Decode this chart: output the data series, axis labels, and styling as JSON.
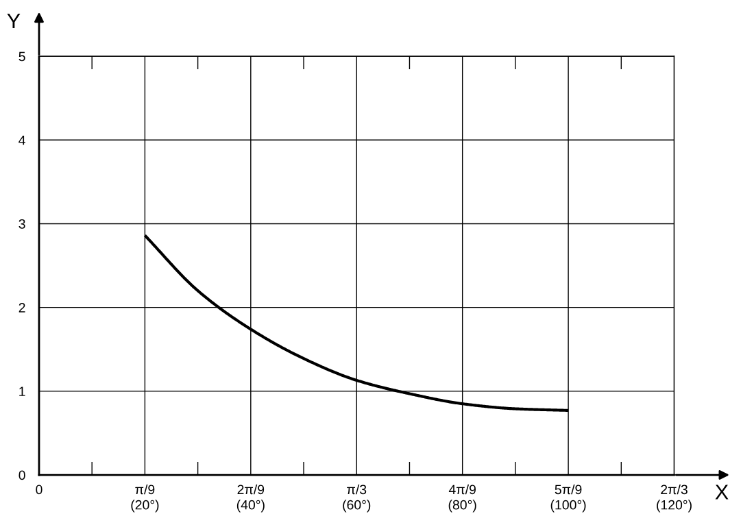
{
  "chart_data": {
    "type": "line",
    "xlabel": "X",
    "ylabel": "Y",
    "categories": [
      "0",
      null,
      "π/9\n(20°)",
      null,
      "2π/9\n(40°)",
      null,
      "π/3\n(60°)",
      null,
      "4π/9\n(80°)",
      null,
      "5π/9\n(100°)",
      null,
      "2π/3\n(120°)"
    ],
    "series": [
      {
        "color": "#000000",
        "values": [
          null,
          null,
          2.86,
          2.2,
          1.74,
          1.39,
          1.13,
          0.97,
          0.85,
          0.79,
          0.77,
          null,
          null
        ]
      }
    ],
    "ylim": [
      0,
      5
    ],
    "yticks": [
      0,
      1,
      2,
      3,
      4,
      5
    ],
    "grid": true,
    "marker": "none",
    "line_style": "solid",
    "legend": false
  }
}
